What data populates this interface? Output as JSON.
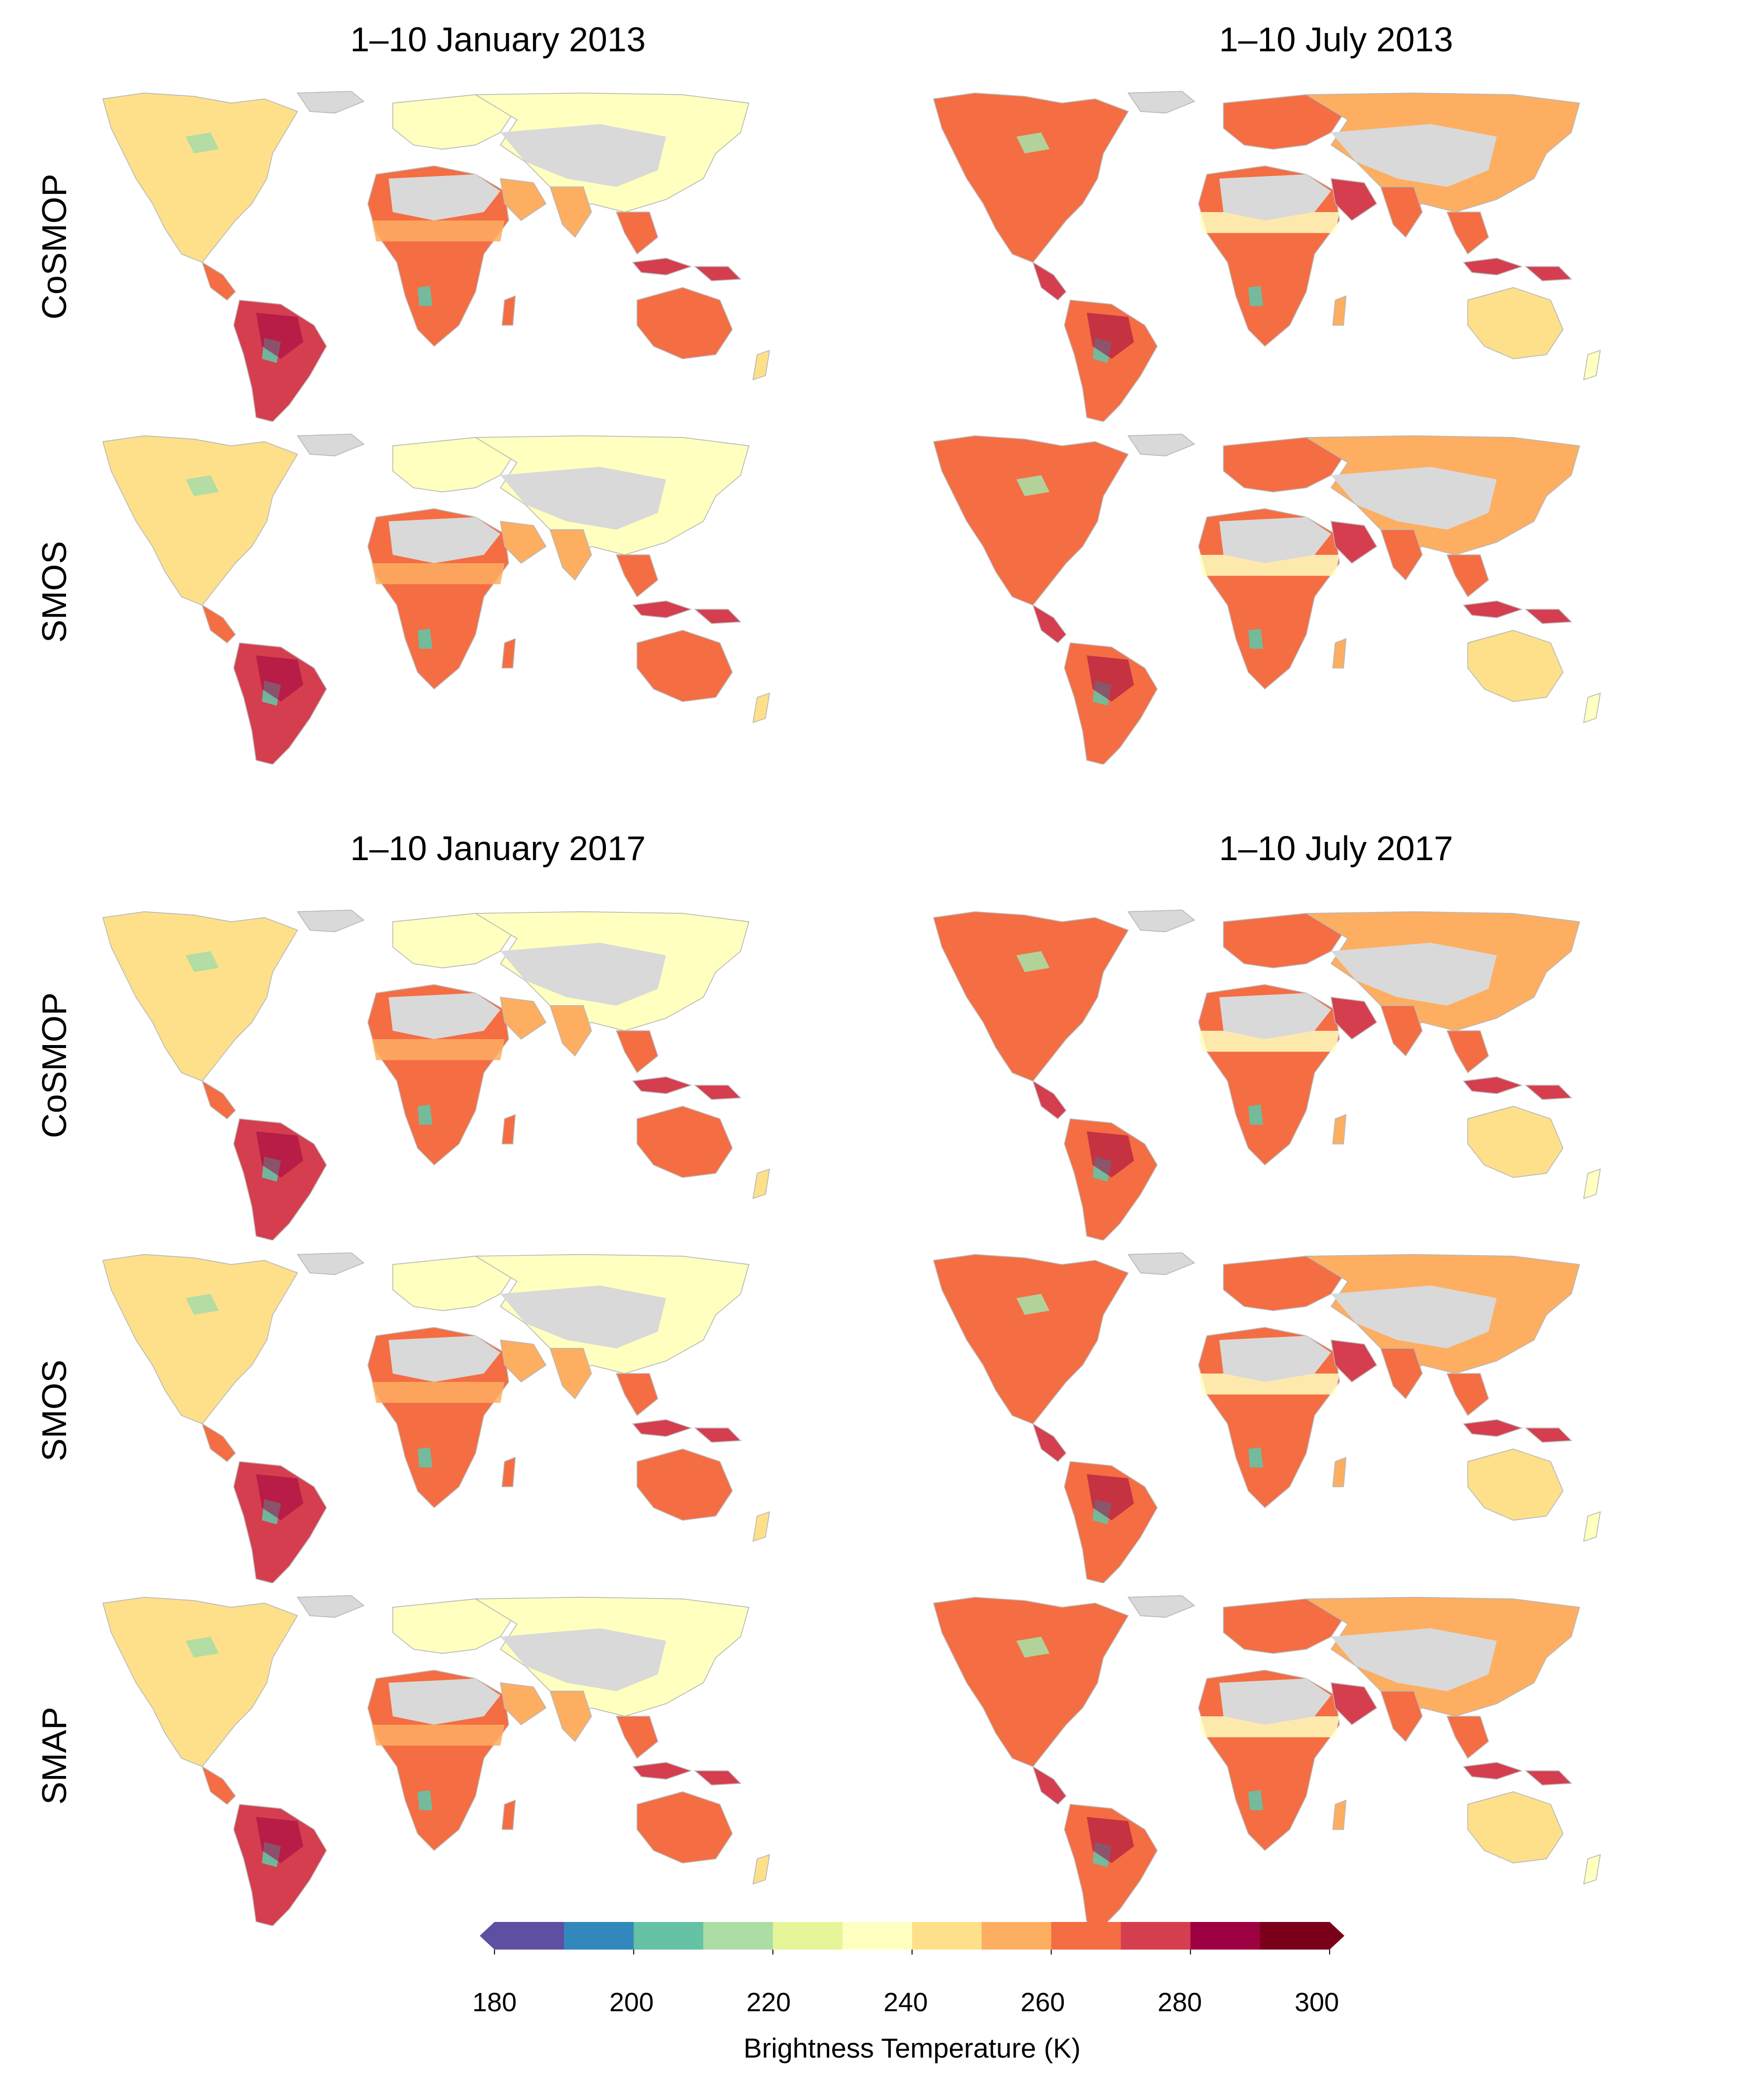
{
  "column_titles": {
    "jan_2013": "1–10 January 2013",
    "jul_2013": "1–10 July 2013",
    "jan_2017": "1–10 January 2017",
    "jul_2017": "1–10 July 2017"
  },
  "row_labels": {
    "r1": "CoSMOP",
    "r2": "SMOS",
    "r3": "CoSMOP",
    "r4": "SMOS",
    "r5": "SMAP"
  },
  "colorbar": {
    "title": "Brightness Temperature (K)",
    "ticks": [
      "180",
      "200",
      "220",
      "240",
      "260",
      "280",
      "300"
    ],
    "colors": [
      "#5e4fa2",
      "#3288bd",
      "#66c2a5",
      "#abdda4",
      "#e6f598",
      "#ffffbf",
      "#fee08b",
      "#fdae61",
      "#f46d43",
      "#d53e4f",
      "#9e0142",
      "#7a0019"
    ],
    "under_color": "#5e4fa2",
    "over_color": "#7a0019",
    "min": 180,
    "max": 300,
    "step": 10
  },
  "no_data_color": "#d9d9d9",
  "panels": [
    {
      "period": "1–10 January 2013",
      "product": "CoSMOP",
      "season": "jan"
    },
    {
      "period": "1–10 July 2013",
      "product": "CoSMOP",
      "season": "jul"
    },
    {
      "period": "1–10 January 2013",
      "product": "SMOS",
      "season": "jan"
    },
    {
      "period": "1–10 July 2013",
      "product": "SMOS",
      "season": "jul"
    },
    {
      "period": "1–10 January 2017",
      "product": "CoSMOP",
      "season": "jan"
    },
    {
      "period": "1–10 July 2017",
      "product": "CoSMOP",
      "season": "jul"
    },
    {
      "period": "1–10 January 2017",
      "product": "SMOS",
      "season": "jan"
    },
    {
      "period": "1–10 July 2017",
      "product": "SMOS",
      "season": "jul"
    },
    {
      "period": "1–10 January 2017",
      "product": "SMAP",
      "season": "jan"
    },
    {
      "period": "1–10 July 2017",
      "product": "SMAP",
      "season": "jul"
    }
  ]
}
